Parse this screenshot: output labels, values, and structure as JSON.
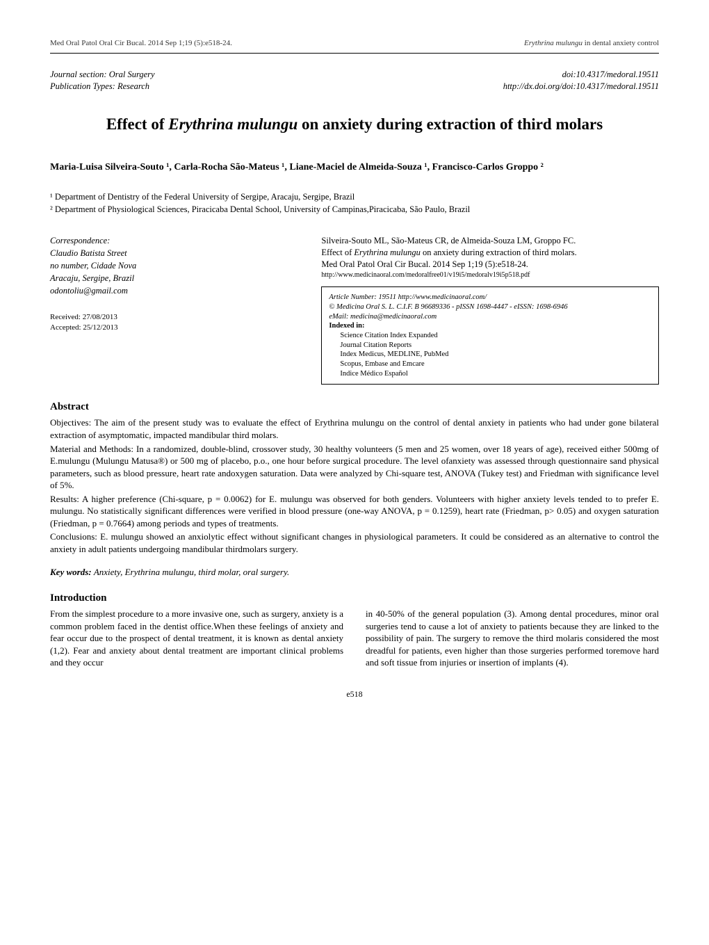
{
  "header": {
    "left": "Med Oral Patol Oral Cir Bucal. 2014 Sep 1;19 (5):e518-24.",
    "right_ital": "Erythrina mulungu",
    "right_rest": " in dental anxiety control"
  },
  "journal": {
    "section": "Journal section: Oral Surgery",
    "pubtype": "Publication Types: Research",
    "doi": "doi:10.4317/medoral.19511",
    "doi_url": "http://dx.doi.org/doi:10.4317/medoral.19511"
  },
  "title": {
    "pre": "Effect of ",
    "ital": "Erythrina mulungu",
    "post": " on anxiety during extraction of third molars"
  },
  "authors": "Maria-Luisa Silveira-Souto ¹, Carla-Rocha São-Mateus ¹, Liane-Maciel de Almeida-Souza ¹, Francisco-Carlos Groppo ²",
  "affiliations": [
    "¹ Department of Dentistry of the Federal University of Sergipe, Aracaju, Sergipe, Brazil",
    "² Department of Physiological Sciences, Piracicaba Dental School, University of Campinas,Piracicaba, São Paulo, Brazil"
  ],
  "correspondence": {
    "label": "Correspondence:",
    "lines": [
      "Claudio Batista Street",
      "no number, Cidade Nova",
      "Aracaju, Sergipe, Brazil",
      "odontoliu@gmail.com"
    ]
  },
  "dates": {
    "received": "Received: 27/08/2013",
    "accepted": "Accepted: 25/12/2013"
  },
  "citation": {
    "line1": "Silveira-Souto ML, São-Mateus CR, de Almeida-Souza LM, Groppo FC.",
    "line2_pre": "Effect of ",
    "line2_ital": "Erythrina mulungu",
    "line2_post": " on anxiety during extraction of third molars.",
    "line3": "Med Oral Patol Oral Cir Bucal. 2014 Sep 1;19 (5):e518-24.",
    "line4": "http://www.medicinaoral.com/medoralfree01/v19i5/medoralv19i5p518.pdf"
  },
  "indexbox": {
    "article_no": "Article Number: 19511        http://www.medicinaoral.com/",
    "copyright": "© Medicina Oral S. L. C.I.F. B 96689336 - pISSN 1698-4447 - eISSN: 1698-6946",
    "email": "eMail:  medicina@medicinaoral.com",
    "indexed_label": "Indexed in:",
    "items": [
      "Science Citation Index Expanded",
      "Journal Citation Reports",
      "Index Medicus, MEDLINE, PubMed",
      "Scopus, Embase and Emcare",
      "Indice Médico Español"
    ]
  },
  "abstract": {
    "heading": "Abstract",
    "p1": "Objectives: The aim of the present study was to evaluate the effect of Erythrina mulungu on the control of dental anxiety in patients who had under gone bilateral extraction of asymptomatic, impacted mandibular third molars.",
    "p2": "Material and Methods: In a randomized, double-blind, crossover study, 30 healthy volunteers (5 men and 25 women, over 18 years of age), received either 500mg of E.mulungu (Mulungu Matusa®) or 500 mg of placebo, p.o., one hour before surgical procedure. The level ofanxiety was assessed through questionnaire sand physical parameters, such as blood pressure, heart rate andoxygen saturation. Data were analyzed by Chi-square test, ANOVA (Tukey test) and Friedman with significance level of 5%.",
    "p3": "Results: A higher preference (Chi-square, p = 0.0062) for E. mulungu was observed for both genders. Volunteers with higher anxiety levels tended to to prefer E. mulungu. No statistically significant differences were verified in blood pressure (one-way ANOVA, p = 0.1259), heart rate (Friedman, p> 0.05) and oxygen saturation (Friedman, p = 0.7664) among periods and types of treatments.",
    "p4": "Conclusions: E. mulungu showed an anxiolytic effect without significant changes in physiological parameters. It could be considered as an alternative to control the anxiety in adult patients undergoing mandibular thirdmolars surgery."
  },
  "keywords": {
    "label": "Key words: ",
    "values": "Anxiety, Erythrina mulungu, third molar, oral surgery."
  },
  "intro": {
    "heading": "Introduction",
    "col1": "From the simplest procedure to a more invasive one, such as surgery, anxiety is a common problem faced in the dentist office.When these feelings of anxiety and fear occur due to the prospect of dental treatment, it is known as dental anxiety (1,2). Fear and anxiety about dental treatment are important clinical problems and they occur",
    "col2": "in 40-50% of the general population (3). Among dental procedures, minor oral surgeries tend to cause a lot of anxiety to patients because they are linked to the possibility of pain. The surgery to remove the third molaris considered the most dreadful for patients, even higher than those surgeries performed toremove hard and soft tissue from injuries or insertion of implants (4)."
  },
  "page_number": "e518",
  "colors": {
    "text": "#000000",
    "background": "#ffffff",
    "rule": "#000000"
  }
}
